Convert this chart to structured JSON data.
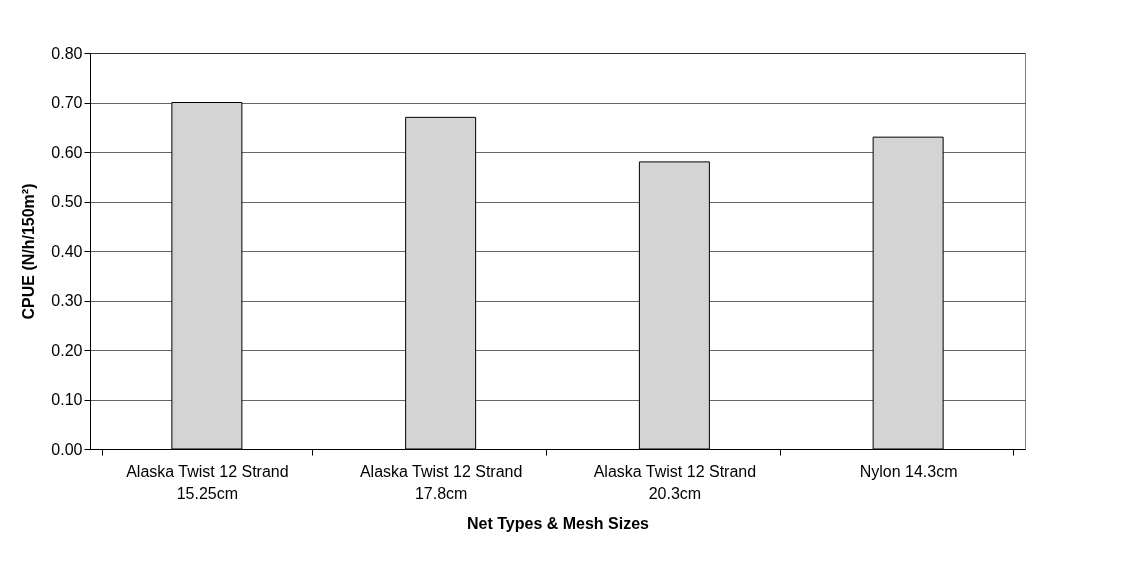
{
  "chart_data": {
    "type": "bar",
    "xlabel": "Net Types & Mesh Sizes",
    "ylabel": "CPUE (N/h/150m²)",
    "categories": [
      "Alaska Twist 12 Strand 15.25cm",
      "Alaska Twist 12 Strand 17.8cm",
      "Alaska Twist 12 Strand 20.3cm",
      "Nylon 14.3cm"
    ],
    "values": [
      0.7,
      0.67,
      0.58,
      0.63
    ],
    "color": "#d4d4d4",
    "ylim": [
      0,
      0.8
    ],
    "yticks": [
      {
        "value": 0,
        "label": "0.00"
      },
      {
        "value": 0.1,
        "label": "0.10"
      },
      {
        "value": 0.2,
        "label": "0.20"
      },
      {
        "value": 0.3,
        "label": "0.30"
      },
      {
        "value": 0.4,
        "label": "0.40"
      },
      {
        "value": 0.5,
        "label": "0.50"
      },
      {
        "value": 0.6,
        "label": "0.60"
      },
      {
        "value": 0.7,
        "label": "0.70"
      },
      {
        "value": 0.8,
        "label": "0.80"
      }
    ],
    "grid": "y"
  }
}
